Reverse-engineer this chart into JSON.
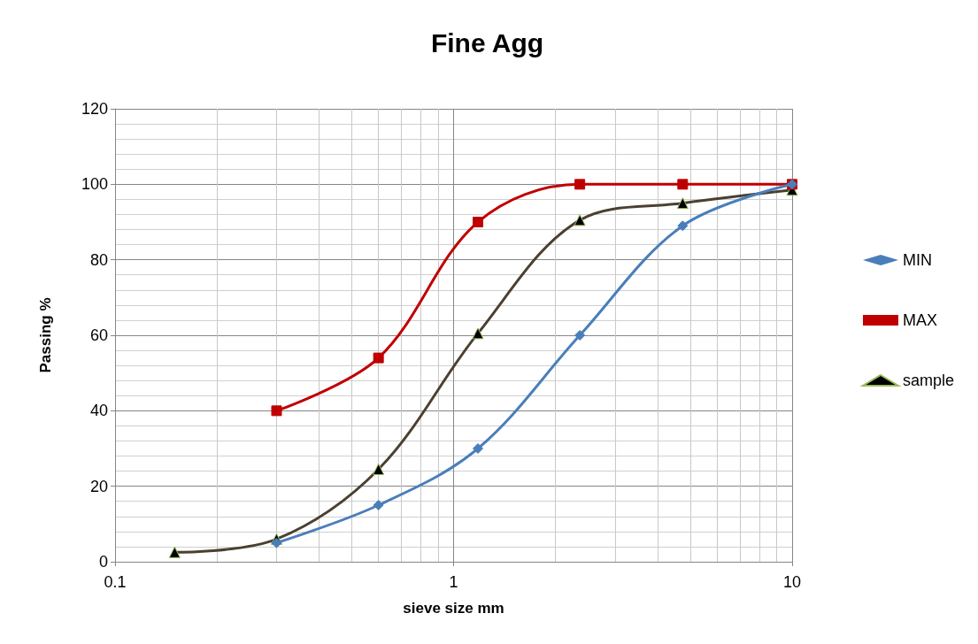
{
  "chart_data": {
    "type": "line",
    "title": "Fine Agg",
    "xlabel": "sieve size mm",
    "ylabel": "Passing %",
    "log": "x",
    "xlim": [
      0.1,
      10
    ],
    "xticks": [
      0.1,
      1,
      10
    ],
    "ylim": [
      0,
      120
    ],
    "yticks": [
      0,
      20,
      40,
      60,
      80,
      100,
      120
    ],
    "grid": true,
    "legend": "right",
    "line_style": "solid",
    "series": [
      {
        "name": "MIN",
        "color": "#4a7ebb",
        "marker": "diamond",
        "x": [
          0.3,
          0.6,
          1.18,
          2.36,
          4.75,
          10
        ],
        "values": [
          5,
          15,
          30,
          60,
          89,
          100
        ]
      },
      {
        "name": "MAX",
        "color": "#c00000",
        "marker": "square",
        "x": [
          0.3,
          0.6,
          1.18,
          2.36,
          4.75,
          10
        ],
        "values": [
          40,
          54,
          90,
          100,
          100,
          100
        ]
      },
      {
        "name": "sample",
        "color": "#4b4030",
        "marker": "triangle",
        "x": [
          0.15,
          0.3,
          0.6,
          1.18,
          2.36,
          4.75,
          10
        ],
        "values": [
          2.5,
          6,
          24.5,
          60.5,
          90.5,
          95,
          98.5
        ]
      }
    ]
  }
}
